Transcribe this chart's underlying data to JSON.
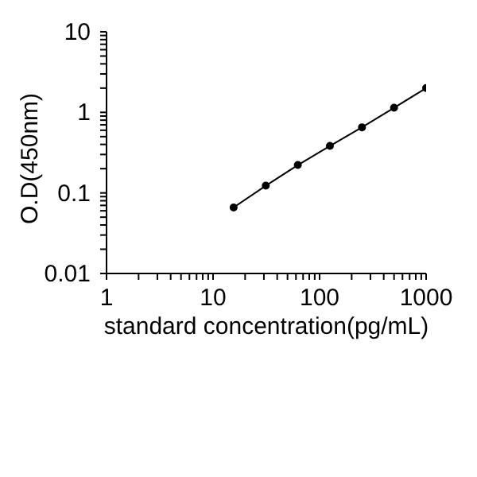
{
  "chart_data": {
    "type": "line",
    "xlabel": "standard concentration(pg/mL)",
    "ylabel": "O.D(450nm)",
    "log": "xy",
    "marker": "circle",
    "grid": false,
    "legend": false,
    "x": [
      15.6,
      31.25,
      62.5,
      125,
      250,
      500,
      1000
    ],
    "series": [
      {
        "color": "#000000",
        "values": [
          0.066,
          0.123,
          0.222,
          0.383,
          0.652,
          1.14,
          2.0
        ]
      }
    ],
    "xlim": [
      1,
      1000
    ],
    "ylim": [
      0.01,
      10
    ],
    "xticks": [
      1,
      {
        "value": 2,
        "label": null
      },
      {
        "value": 3,
        "label": null
      },
      {
        "value": 4,
        "label": null
      },
      {
        "value": 5,
        "label": null
      },
      {
        "value": 6,
        "label": null
      },
      {
        "value": 7,
        "label": null
      },
      {
        "value": 8,
        "label": null
      },
      {
        "value": 9,
        "label": null
      },
      10,
      {
        "value": 20,
        "label": null
      },
      {
        "value": 30,
        "label": null
      },
      {
        "value": 40,
        "label": null
      },
      {
        "value": 50,
        "label": null
      },
      {
        "value": 60,
        "label": null
      },
      {
        "value": 70,
        "label": null
      },
      {
        "value": 80,
        "label": null
      },
      {
        "value": 90,
        "label": null
      },
      100,
      {
        "value": 200,
        "label": null
      },
      {
        "value": 300,
        "label": null
      },
      {
        "value": 400,
        "label": null
      },
      {
        "value": 500,
        "label": null
      },
      {
        "value": 600,
        "label": null
      },
      {
        "value": 700,
        "label": null
      },
      {
        "value": 800,
        "label": null
      },
      {
        "value": 900,
        "label": null
      },
      1000
    ],
    "yticks": [
      0.01,
      {
        "value": 0.02,
        "label": null
      },
      {
        "value": 0.03,
        "label": null
      },
      {
        "value": 0.04,
        "label": null
      },
      {
        "value": 0.05,
        "label": null
      },
      {
        "value": 0.06,
        "label": null
      },
      {
        "value": 0.07,
        "label": null
      },
      {
        "value": 0.08,
        "label": null
      },
      {
        "value": 0.09,
        "label": null
      },
      0.1,
      {
        "value": 0.2,
        "label": null
      },
      {
        "value": 0.3,
        "label": null
      },
      {
        "value": 0.4,
        "label": null
      },
      {
        "value": 0.5,
        "label": null
      },
      {
        "value": 0.6,
        "label": null
      },
      {
        "value": 0.7,
        "label": null
      },
      {
        "value": 0.8,
        "label": null
      },
      {
        "value": 0.9,
        "label": null
      },
      1,
      {
        "value": 2,
        "label": null
      },
      {
        "value": 3,
        "label": null
      },
      {
        "value": 4,
        "label": null
      },
      {
        "value": 5,
        "label": null
      },
      {
        "value": 6,
        "label": null
      },
      {
        "value": 7,
        "label": null
      },
      {
        "value": 8,
        "label": null
      },
      {
        "value": 9,
        "label": null
      },
      10
    ]
  }
}
